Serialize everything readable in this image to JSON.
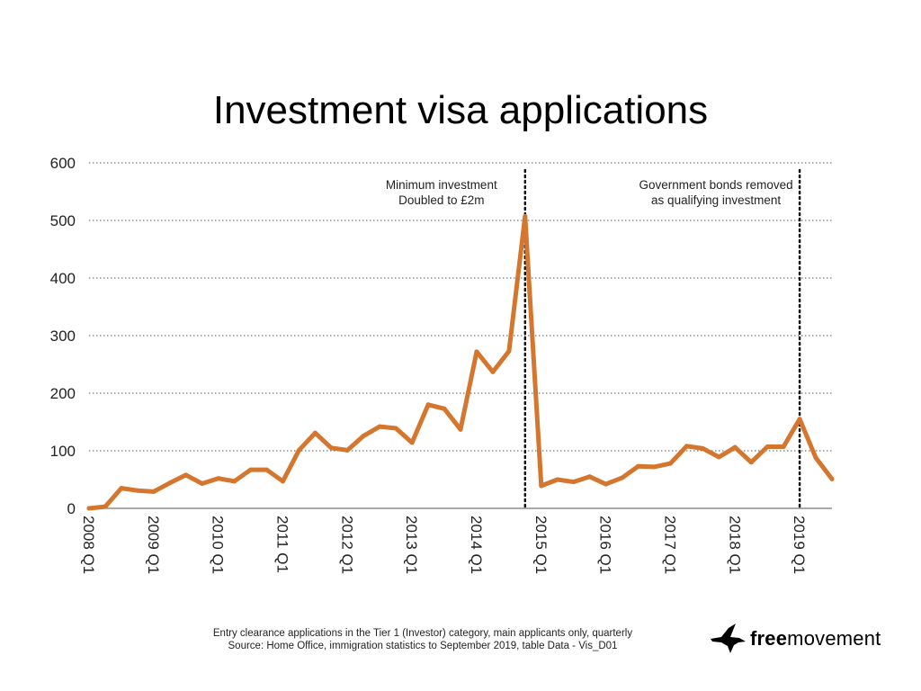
{
  "chart_data": {
    "type": "line",
    "title": "Investment visa applications",
    "xlabel": "",
    "ylabel": "",
    "ylim": [
      0,
      600
    ],
    "yticks": [
      0,
      100,
      200,
      300,
      400,
      500,
      600
    ],
    "grid": true,
    "line_color": "#D4762E",
    "x": [
      "2008 Q1",
      "2008 Q2",
      "2008 Q3",
      "2008 Q4",
      "2009 Q1",
      "2009 Q2",
      "2009 Q3",
      "2009 Q4",
      "2010 Q1",
      "2010 Q2",
      "2010 Q3",
      "2010 Q4",
      "2011 Q1",
      "2011 Q2",
      "2011 Q3",
      "2011 Q4",
      "2012 Q1",
      "2012 Q2",
      "2012 Q3",
      "2012 Q4",
      "2013 Q1",
      "2013 Q2",
      "2013 Q3",
      "2013 Q4",
      "2014 Q1",
      "2014 Q2",
      "2014 Q3",
      "2014 Q4",
      "2015 Q1",
      "2015 Q2",
      "2015 Q3",
      "2015 Q4",
      "2016 Q1",
      "2016 Q2",
      "2016 Q3",
      "2016 Q4",
      "2017 Q1",
      "2017 Q2",
      "2017 Q3",
      "2017 Q4",
      "2018 Q1",
      "2018 Q2",
      "2018 Q3",
      "2018 Q4",
      "2019 Q1",
      "2019 Q2",
      "2019 Q3"
    ],
    "x_tick_labels": [
      "2008 Q1",
      "2009 Q1",
      "2010 Q1",
      "2011 Q1",
      "2012 Q1",
      "2013 Q1",
      "2014 Q1",
      "2015 Q1",
      "2016 Q1",
      "2017 Q1",
      "2018 Q1",
      "2019 Q1"
    ],
    "values": [
      0,
      3,
      35,
      31,
      29,
      44,
      58,
      43,
      52,
      47,
      67,
      67,
      47,
      101,
      131,
      105,
      101,
      126,
      142,
      139,
      114,
      180,
      173,
      137,
      272,
      237,
      273,
      507,
      39,
      50,
      46,
      55,
      42,
      53,
      73,
      72,
      78,
      108,
      104,
      89,
      106,
      80,
      107,
      107,
      155,
      88,
      51
    ],
    "annotations": [
      {
        "at": "2014 Q4",
        "lines": [
          "Minimum investment",
          "Doubled to £2m"
        ]
      },
      {
        "at": "2019 Q1",
        "lines": [
          "Government bonds removed",
          "as qualifying investment"
        ]
      }
    ]
  },
  "footnote": {
    "line1": "Entry clearance applications in the Tier 1 (Investor) category, main applicants only, quarterly",
    "line2": "Source: Home Office, immigration statistics to September 2019, table Data - Vis_D01"
  },
  "brand": {
    "bold": "free",
    "regular": "movement",
    "icon": "bird-icon"
  }
}
